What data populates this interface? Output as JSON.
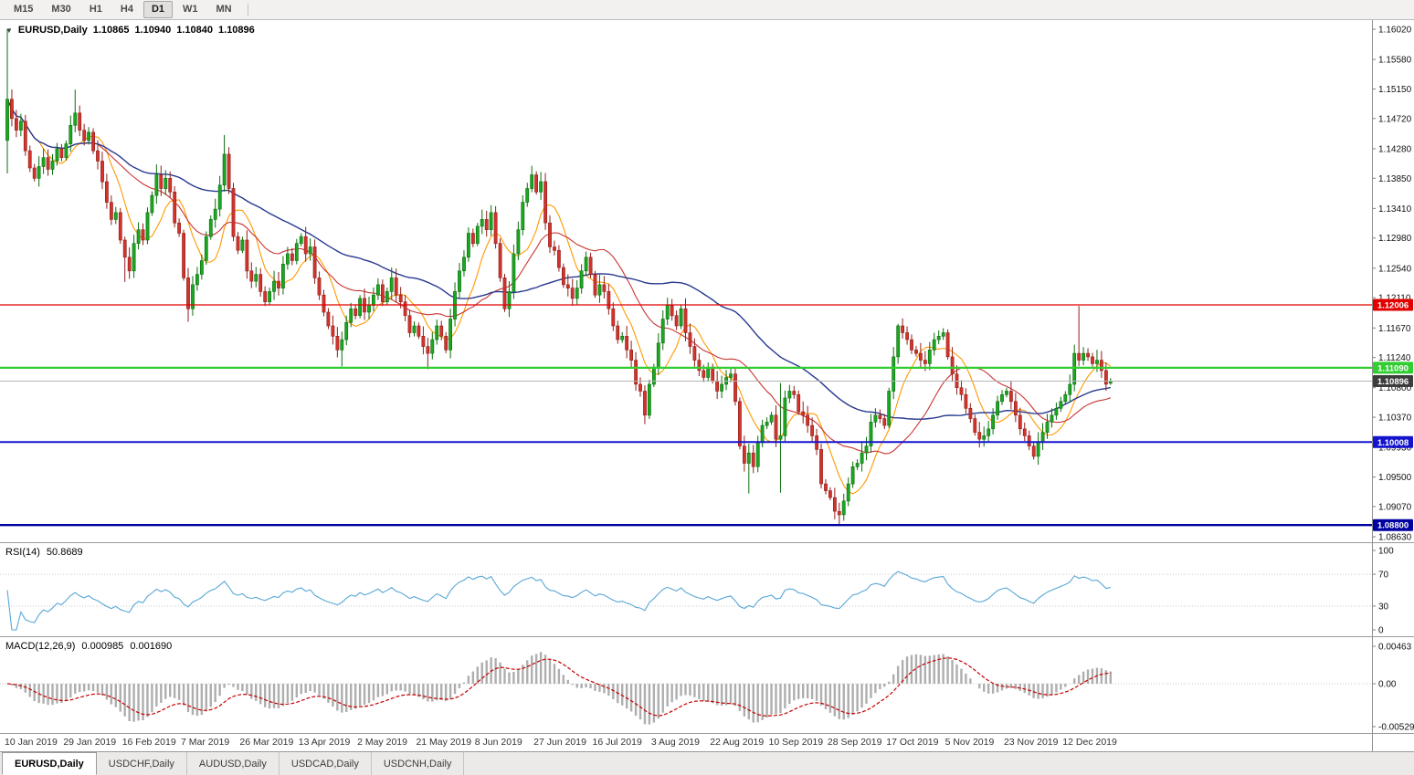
{
  "toolbar": {
    "timeframes": [
      "M15",
      "M30",
      "H1",
      "H4",
      "D1",
      "W1",
      "MN"
    ],
    "active": "D1"
  },
  "chart_header": {
    "symbol": "EURUSD,Daily",
    "open": "1.10865",
    "high": "1.10940",
    "low": "1.10840",
    "close": "1.10896"
  },
  "rsi_panel": {
    "name": "RSI(14)",
    "value": "50.8689"
  },
  "macd_panel": {
    "name": "MACD(12,26,9)",
    "value1": "0.000985",
    "value2": "0.001690"
  },
  "tabs": {
    "items": [
      "EURUSD,Daily",
      "USDCHF,Daily",
      "AUDUSD,Daily",
      "USDCAD,Daily",
      "USDCNH,Daily"
    ],
    "active": "EURUSD,Daily"
  },
  "chart_data": {
    "type": "candlestick",
    "symbol": "EURUSD",
    "timeframe": "Daily",
    "y_tick_labels": [
      "1.16020",
      "1.15580",
      "1.15150",
      "1.14720",
      "1.14280",
      "1.13850",
      "1.13410",
      "1.12980",
      "1.12540",
      "1.12110",
      "1.11670",
      "1.11240",
      "1.10800",
      "1.10370",
      "1.09930",
      "1.09500",
      "1.09070",
      "1.08630"
    ],
    "y_tick_values": [
      1.1602,
      1.1558,
      1.1515,
      1.1472,
      1.1428,
      1.1385,
      1.1341,
      1.1298,
      1.1254,
      1.1211,
      1.1167,
      1.1124,
      1.108,
      1.1037,
      1.0993,
      1.095,
      1.0907,
      1.0863
    ],
    "x_labels": [
      "10 Jan 2019",
      "29 Jan 2019",
      "16 Feb 2019",
      "7 Mar 2019",
      "26 Mar 2019",
      "13 Apr 2019",
      "2 May 2019",
      "21 May 2019",
      "8 Jun 2019",
      "27 Jun 2019",
      "16 Jul 2019",
      "3 Aug 2019",
      "22 Aug 2019",
      "10 Sep 2019",
      "28 Sep 2019",
      "17 Oct 2019",
      "5 Nov 2019",
      "23 Nov 2019",
      "12 Dec 2019"
    ],
    "closes": [
      1.15,
      1.1472,
      1.1455,
      1.1468,
      1.1425,
      1.14,
      1.1385,
      1.1402,
      1.1415,
      1.1398,
      1.141,
      1.1428,
      1.1415,
      1.1435,
      1.1462,
      1.148,
      1.1455,
      1.144,
      1.1452,
      1.1425,
      1.141,
      1.138,
      1.135,
      1.1325,
      1.1335,
      1.1295,
      1.127,
      1.125,
      1.129,
      1.131,
      1.1295,
      1.1335,
      1.136,
      1.139,
      1.137,
      1.1385,
      1.1365,
      1.132,
      1.1305,
      1.124,
      1.1195,
      1.123,
      1.1245,
      1.1265,
      1.13,
      1.1325,
      1.134,
      1.1375,
      1.142,
      1.137,
      1.13,
      1.128,
      1.1295,
      1.125,
      1.1235,
      1.1245,
      1.122,
      1.1205,
      1.122,
      1.1235,
      1.1225,
      1.126,
      1.1275,
      1.1265,
      1.129,
      1.13,
      1.1275,
      1.1285,
      1.124,
      1.1215,
      1.119,
      1.117,
      1.1155,
      1.1135,
      1.115,
      1.1175,
      1.1195,
      1.1185,
      1.121,
      1.119,
      1.12,
      1.1215,
      1.123,
      1.1205,
      1.122,
      1.124,
      1.1215,
      1.1205,
      1.1185,
      1.116,
      1.117,
      1.1155,
      1.114,
      1.113,
      1.115,
      1.117,
      1.1155,
      1.1135,
      1.118,
      1.122,
      1.125,
      1.127,
      1.1305,
      1.129,
      1.1315,
      1.1325,
      1.131,
      1.1335,
      1.129,
      1.124,
      1.1195,
      1.122,
      1.1275,
      1.131,
      1.135,
      1.137,
      1.139,
      1.1365,
      1.138,
      1.132,
      1.1285,
      1.128,
      1.1255,
      1.123,
      1.1225,
      1.121,
      1.1225,
      1.125,
      1.127,
      1.1245,
      1.1215,
      1.123,
      1.122,
      1.1195,
      1.117,
      1.115,
      1.1155,
      1.1135,
      1.112,
      1.1085,
      1.1075,
      1.104,
      1.1085,
      1.111,
      1.1145,
      1.118,
      1.12,
      1.1185,
      1.117,
      1.1195,
      1.116,
      1.114,
      1.112,
      1.1105,
      1.1095,
      1.111,
      1.109,
      1.1075,
      1.1085,
      1.1095,
      1.11,
      1.106,
      1.0995,
      1.097,
      1.0985,
      1.0965,
      1.1,
      1.1025,
      1.103,
      1.104,
      1.1005,
      1.101,
      1.1065,
      1.1075,
      1.107,
      1.1045,
      1.104,
      1.1025,
      1.101,
      1.099,
      1.094,
      1.093,
      1.092,
      1.09,
      1.0895,
      1.0915,
      1.094,
      1.0965,
      1.097,
      1.0985,
      1.0995,
      1.103,
      1.104,
      1.1035,
      1.1025,
      1.1075,
      1.1125,
      1.117,
      1.116,
      1.115,
      1.1135,
      1.113,
      1.112,
      1.1115,
      1.1135,
      1.115,
      1.1155,
      1.116,
      1.1125,
      1.11,
      1.108,
      1.107,
      1.105,
      1.1035,
      1.1015,
      1.1005,
      1.101,
      1.102,
      1.104,
      1.106,
      1.107,
      1.1075,
      1.106,
      1.104,
      1.102,
      1.101,
      1.0995,
      1.098,
      1.1,
      1.1015,
      1.103,
      1.104,
      1.105,
      1.106,
      1.107,
      1.1085,
      1.113,
      1.112,
      1.113,
      1.1125,
      1.1115,
      1.112,
      1.1105,
      1.1085,
      1.10896
    ],
    "wick_overrides": {
      "0": {
        "o": 1.144,
        "h": 1.1602,
        "l": 1.1392
      },
      "15": {
        "h": 1.1514
      },
      "26": {
        "l": 1.1234
      },
      "40": {
        "l": 1.1176
      },
      "48": {
        "h": 1.1448
      },
      "74": {
        "l": 1.1111
      },
      "93": {
        "l": 1.1107
      },
      "116": {
        "h": 1.1403
      },
      "141": {
        "l": 1.1027
      },
      "164": {
        "l": 1.0926
      },
      "171": {
        "h": 1.1087,
        "l": 1.0927
      },
      "184": {
        "l": 1.0879
      },
      "197": {
        "h": 1.1173
      },
      "237": {
        "h": 1.1199
      },
      "244": {
        "o": 1.10865,
        "h": 1.1094,
        "l": 1.1084
      }
    },
    "levels": [
      {
        "price": 1.12006,
        "label": "1.12006",
        "color": "#E00000",
        "width": 1.2
      },
      {
        "price": 1.1109,
        "label": "1.11090",
        "color": "#32CD32",
        "width": 2.2
      },
      {
        "price": 1.10008,
        "label": "1.10008",
        "color": "#1414CD",
        "width": 2
      },
      {
        "price": 1.088,
        "label": "1.08800",
        "color": "#0000A0",
        "width": 2.4
      }
    ],
    "current_price": 1.10896,
    "current_price_label": "1.10896",
    "current_price_line_color": "#B4B4B4",
    "current_price_tag_color": "#3C3C3C",
    "moving_averages": [
      {
        "period": 8,
        "color": "#FF9900"
      },
      {
        "period": 21,
        "color": "#C93434"
      },
      {
        "period": 50,
        "color": "#27398F"
      }
    ],
    "rsi": {
      "period": 14,
      "color": "#58A7D6",
      "ticks": [
        100,
        70,
        30,
        0
      ],
      "guide_levels": [
        70,
        30
      ]
    },
    "macd": {
      "fast": 12,
      "slow": 26,
      "signal": 9,
      "hist_color": "#AEAEAE",
      "signal_color": "#C40000",
      "ticks": [
        {
          "label": "0.00463",
          "value": 0.00463
        },
        {
          "label": "0.00",
          "value": 0
        },
        {
          "label": "-0.005299",
          "value": -0.005299
        }
      ]
    },
    "colors": {
      "up": "#1CA623",
      "up_stroke": "#0B6E0B",
      "down": "#D2342C",
      "down_stroke": "#8E1F1B",
      "background": "#FFFFFF",
      "axis_text": "#111111"
    }
  }
}
